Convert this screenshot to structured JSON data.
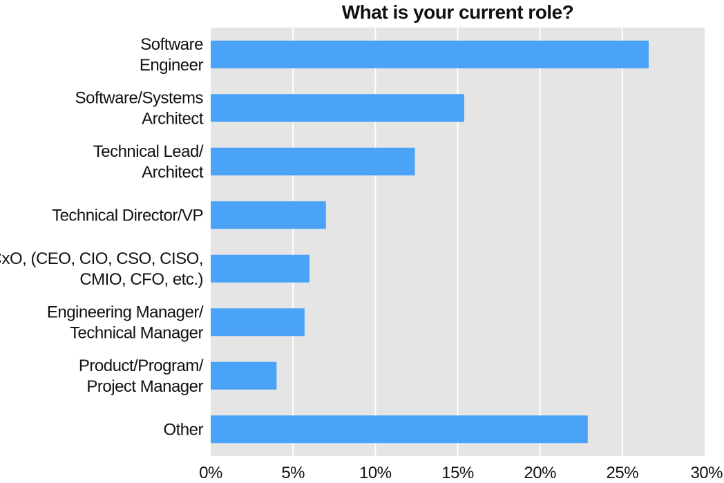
{
  "chart_data": {
    "type": "bar",
    "orientation": "horizontal",
    "title": "What is your current role?",
    "categories": [
      [
        "Software",
        "Engineer"
      ],
      [
        "Software/Systems",
        "Architect"
      ],
      [
        "Technical Lead/",
        "Architect"
      ],
      [
        "Technical Director/VP"
      ],
      [
        "CxO, (CEO, CIO, CSO, CISO,",
        "CMIO, CFO, etc.)"
      ],
      [
        "Engineering Manager/",
        "Technical Manager"
      ],
      [
        "Product/Program/",
        "Project Manager"
      ],
      [
        "Other"
      ]
    ],
    "values": [
      26.6,
      15.4,
      12.4,
      7.0,
      6.0,
      5.7,
      4.0,
      22.9
    ],
    "xlim": [
      0,
      30
    ],
    "ticks": [
      "0%",
      "5%",
      "10%",
      "15%",
      "20%",
      "25%",
      "30%"
    ],
    "tick_values": [
      0,
      5,
      10,
      15,
      20,
      25,
      30
    ],
    "grid": true,
    "colors": {
      "bar": "#4aa3f7",
      "plot_bg": "#e5e5e5",
      "grid": "#ffffff"
    }
  }
}
